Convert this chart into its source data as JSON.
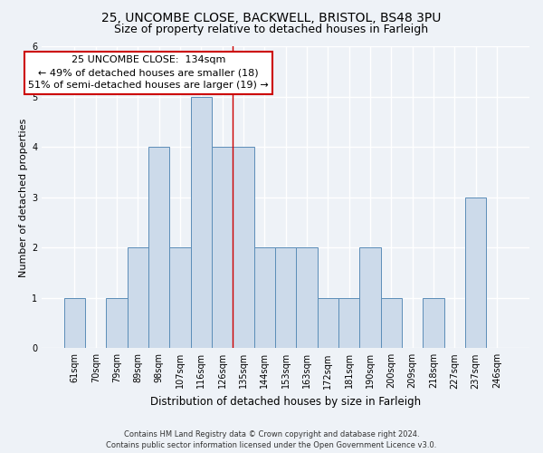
{
  "title1": "25, UNCOMBE CLOSE, BACKWELL, BRISTOL, BS48 3PU",
  "title2": "Size of property relative to detached houses in Farleigh",
  "xlabel": "Distribution of detached houses by size in Farleigh",
  "ylabel": "Number of detached properties",
  "categories": [
    "61sqm",
    "70sqm",
    "79sqm",
    "89sqm",
    "98sqm",
    "107sqm",
    "116sqm",
    "126sqm",
    "135sqm",
    "144sqm",
    "153sqm",
    "163sqm",
    "172sqm",
    "181sqm",
    "190sqm",
    "200sqm",
    "209sqm",
    "218sqm",
    "227sqm",
    "237sqm",
    "246sqm"
  ],
  "values": [
    1,
    0,
    1,
    2,
    4,
    2,
    5,
    4,
    4,
    2,
    2,
    2,
    1,
    1,
    2,
    1,
    0,
    1,
    0,
    3,
    0
  ],
  "bar_color": "#ccdaea",
  "bar_edge_color": "#5b8db8",
  "subject_line_index": 8,
  "subject_line_color": "#cc0000",
  "annotation_text": "25 UNCOMBE CLOSE:  134sqm\n← 49% of detached houses are smaller (18)\n51% of semi-detached houses are larger (19) →",
  "annotation_box_color": "#ffffff",
  "annotation_box_edge_color": "#cc0000",
  "ylim": [
    0,
    6
  ],
  "yticks": [
    0,
    1,
    2,
    3,
    4,
    5,
    6
  ],
  "footer": "Contains HM Land Registry data © Crown copyright and database right 2024.\nContains public sector information licensed under the Open Government Licence v3.0.",
  "background_color": "#eef2f7",
  "grid_color": "#ffffff",
  "title1_fontsize": 10,
  "title2_fontsize": 9,
  "xlabel_fontsize": 8.5,
  "ylabel_fontsize": 8,
  "tick_fontsize": 7,
  "annotation_fontsize": 8,
  "footer_fontsize": 6
}
